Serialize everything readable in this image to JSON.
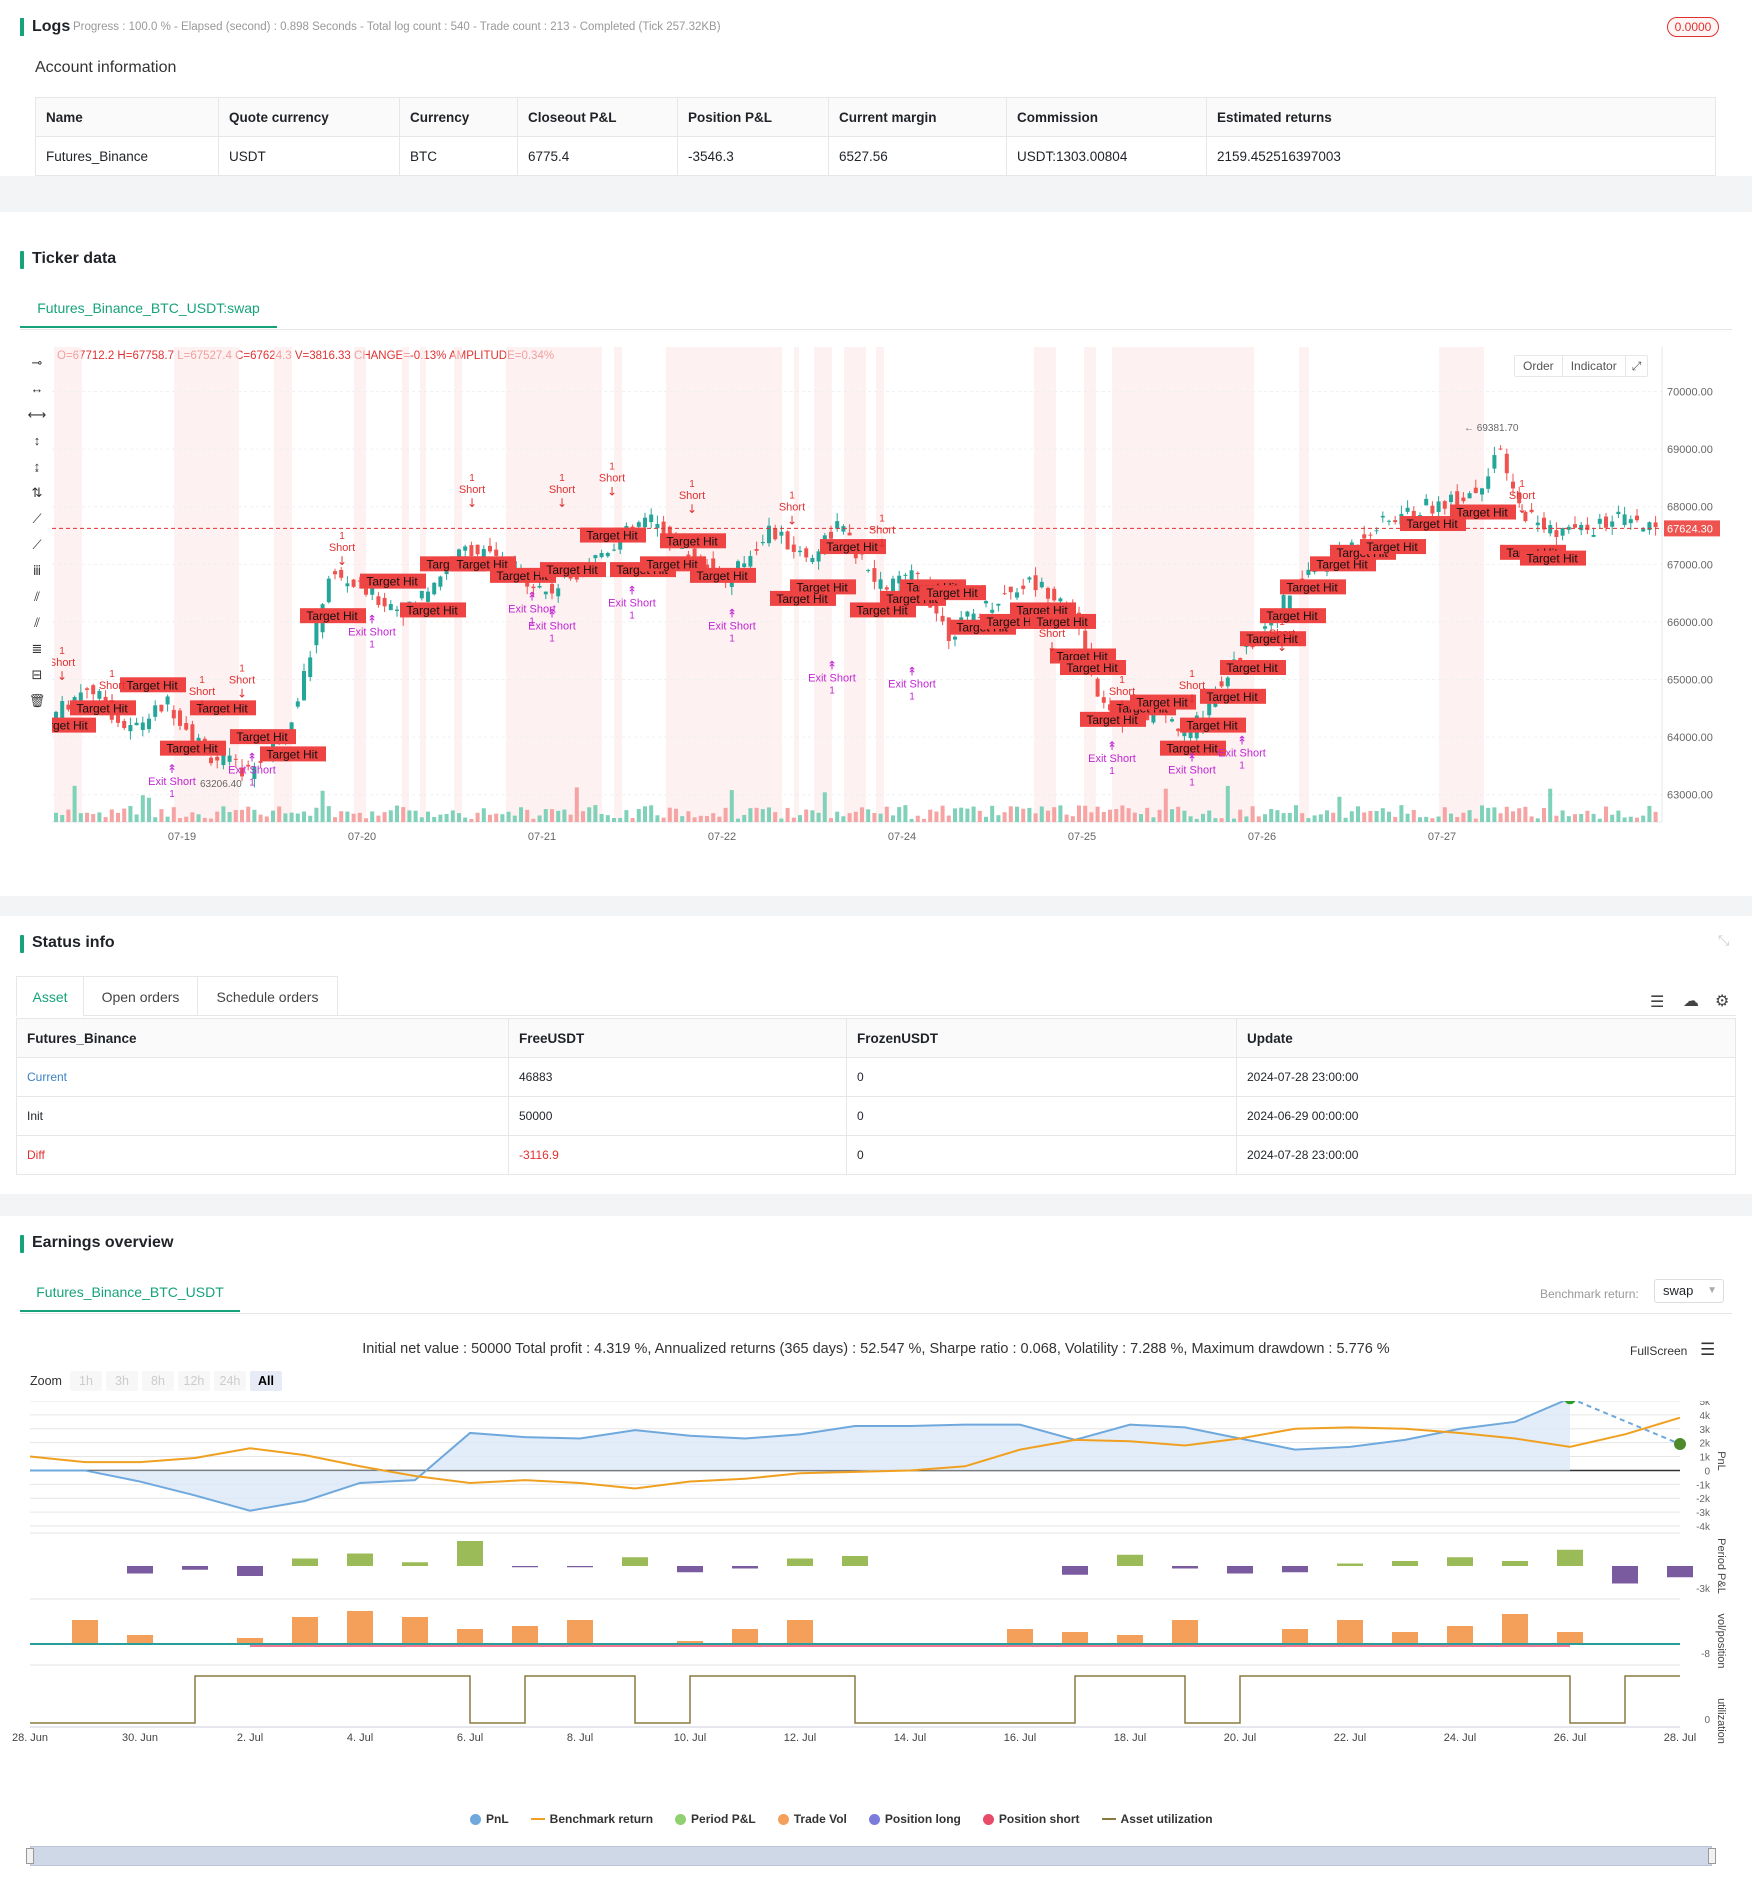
{
  "logs": {
    "title": "Logs",
    "status": "Progress : 100.0 % - Elapsed (second) : 0.898  Seconds - Total log count : 540 - Trade count : 213 - Completed (Tick 257.32KB)",
    "badge": "0.0000"
  },
  "account": {
    "title": "Account information",
    "headers": [
      "Name",
      "Quote currency",
      "Currency",
      "Closeout P&L",
      "Position P&L",
      "Current margin",
      "Commission",
      "Estimated returns"
    ],
    "row": [
      "Futures_Binance",
      "USDT",
      "BTC",
      "6775.4",
      "-3546.3",
      "6527.56",
      "USDT:1303.00804",
      "2159.452516397003"
    ]
  },
  "ticker": {
    "title": "Ticker data",
    "tab": "Futures_Binance_BTC_USDT:swap",
    "ohlc": "O=67712.2 H=67758.7 L=67527.4 C=67624.3 V=3816.33 CHANGE=-0.13% AMPLITUDE=0.34%",
    "buttons": [
      "Order",
      "Indicator"
    ],
    "price_labels": [
      "70000.00",
      "69000.00",
      "68000.00",
      "67000.00",
      "66000.00",
      "65000.00",
      "64000.00",
      "63000.00"
    ],
    "current_price": "67624.30",
    "high_marker": "69381.70",
    "low_marker": "63206.40",
    "date_labels": [
      "07-19",
      "07-20",
      "07-21",
      "07-22",
      "07-24",
      "07-25",
      "07-26",
      "07-27"
    ],
    "annotations": {
      "target": "Target Hit",
      "short": "Short",
      "exit_short": "Exit Short",
      "qty": "1"
    }
  },
  "status": {
    "title": "Status info",
    "tabs": [
      "Asset",
      "Open orders",
      "Schedule orders"
    ],
    "headers": [
      "Futures_Binance",
      "FreeUSDT",
      "FrozenUSDT",
      "Update"
    ],
    "rows": [
      [
        "Current",
        "46883",
        "0",
        "2024-07-28 23:00:00"
      ],
      [
        "Init",
        "50000",
        "0",
        "2024-06-29 00:00:00"
      ],
      [
        "Diff",
        "-3116.9",
        "0",
        "2024-07-28 23:00:00"
      ]
    ],
    "colors": {
      "current": "#3b82c4",
      "diff": "#e03131"
    }
  },
  "earnings": {
    "title": "Earnings overview",
    "tab": "Futures_Binance_BTC_USDT",
    "benchmark_label": "Benchmark return:",
    "benchmark_value": "swap",
    "summary": "Initial net value : 50000 Total profit : 4.319 %, Annualized returns (365 days) : 52.547 %, Sharpe ratio : 0.068, Volatility : 7.288 %, Maximum drawdown : 5.776 %",
    "fullscreen": "FullScreen",
    "zoom_label": "Zoom",
    "zoom_options": [
      "1h",
      "3h",
      "8h",
      "12h",
      "24h",
      "All"
    ],
    "pnl_ticks": [
      "5k",
      "4k",
      "3k",
      "2k",
      "1k",
      "0",
      "-1k",
      "-2k",
      "-3k",
      "-4k"
    ],
    "period_tick": "-3k",
    "vol_tick": "-8",
    "util_tick": "0",
    "axis_titles": [
      "PnL",
      "Period P&L",
      "vol/position",
      "utilization"
    ],
    "x_labels": [
      "28. Jun",
      "30. Jun",
      "2. Jul",
      "4. Jul",
      "6. Jul",
      "8. Jul",
      "10. Jul",
      "12. Jul",
      "14. Jul",
      "16. Jul",
      "18. Jul",
      "20. Jul",
      "22. Jul",
      "24. Jul",
      "26. Jul",
      "28. Jul"
    ],
    "legend": [
      {
        "label": "PnL",
        "color": "#6fa8dc"
      },
      {
        "label": "Benchmark return",
        "color": "#f0a020"
      },
      {
        "label": "Period P&L",
        "color": "#90d070"
      },
      {
        "label": "Trade Vol",
        "color": "#f5a05a"
      },
      {
        "label": "Position long",
        "color": "#7b7bdb"
      },
      {
        "label": "Position short",
        "color": "#e84a6a"
      },
      {
        "label": "Asset utilization",
        "color": "#8a7a40"
      }
    ]
  },
  "chart_data": [
    {
      "type": "line",
      "x": [
        "28. Jun",
        "29. Jun",
        "30. Jun",
        "1. Jul",
        "2. Jul",
        "3. Jul",
        "4. Jul",
        "5. Jul",
        "6. Jul",
        "7. Jul",
        "8. Jul",
        "9. Jul",
        "10. Jul",
        "11. Jul",
        "12. Jul",
        "13. Jul",
        "14. Jul",
        "15. Jul",
        "16. Jul",
        "17. Jul",
        "18. Jul",
        "19. Jul",
        "20. Jul",
        "21. Jul",
        "22. Jul",
        "23. Jul",
        "24. Jul",
        "25. Jul",
        "26. Jul",
        "27. Jul",
        "28. Jul"
      ],
      "series": [
        {
          "name": "PnL",
          "values": [
            0,
            0,
            -800,
            -1800,
            -2900,
            -2200,
            -900,
            -700,
            2700,
            2400,
            2300,
            2900,
            2500,
            2300,
            2600,
            3200,
            3200,
            3300,
            3300,
            2200,
            3300,
            3100,
            2300,
            1500,
            1700,
            2200,
            3000,
            3500,
            5200,
            null,
            1900
          ]
        },
        {
          "name": "Benchmark return",
          "values": [
            1000,
            600,
            600,
            900,
            1600,
            1100,
            300,
            -400,
            -900,
            -700,
            -900,
            -1300,
            -800,
            -600,
            -200,
            -100,
            0,
            300,
            1500,
            2200,
            2100,
            1800,
            2300,
            3000,
            3100,
            3000,
            2700,
            2300,
            1700,
            2600,
            3800
          ]
        }
      ],
      "ylim": [
        -4000,
        5000
      ]
    }
  ]
}
